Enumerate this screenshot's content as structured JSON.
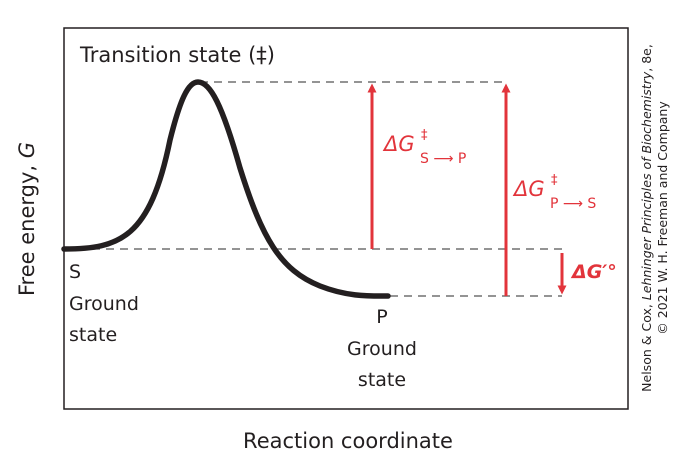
{
  "diagram": {
    "transition_state_label": "Transition state (‡)",
    "s_label": "S",
    "s_ground": "Ground",
    "s_state": "state",
    "p_label": "P",
    "p_ground": "Ground",
    "p_state": "state",
    "y_axis_label": "Free energy, ",
    "y_axis_symbol": "G",
    "x_axis_label": "Reaction coordinate",
    "delta_sp": {
      "delta": "ΔG",
      "dagger": "‡",
      "subscript": "S ⟶ P"
    },
    "delta_ps": {
      "delta": "ΔG",
      "dagger": "‡",
      "subscript": "P ⟶ S"
    },
    "delta_g0": "ΔG′°",
    "credit_line1_prefix": "Nelson & Cox, ",
    "credit_line1_italic": "Lehninger Principles of Biochemistry",
    "credit_line1_suffix": ", 8e,",
    "credit_line2": "© 2021 W. H. Freeman and Company"
  },
  "colors": {
    "curve": "#231f20",
    "accent": "#e2343b",
    "dash": "#555555",
    "frame": "#231f20"
  }
}
